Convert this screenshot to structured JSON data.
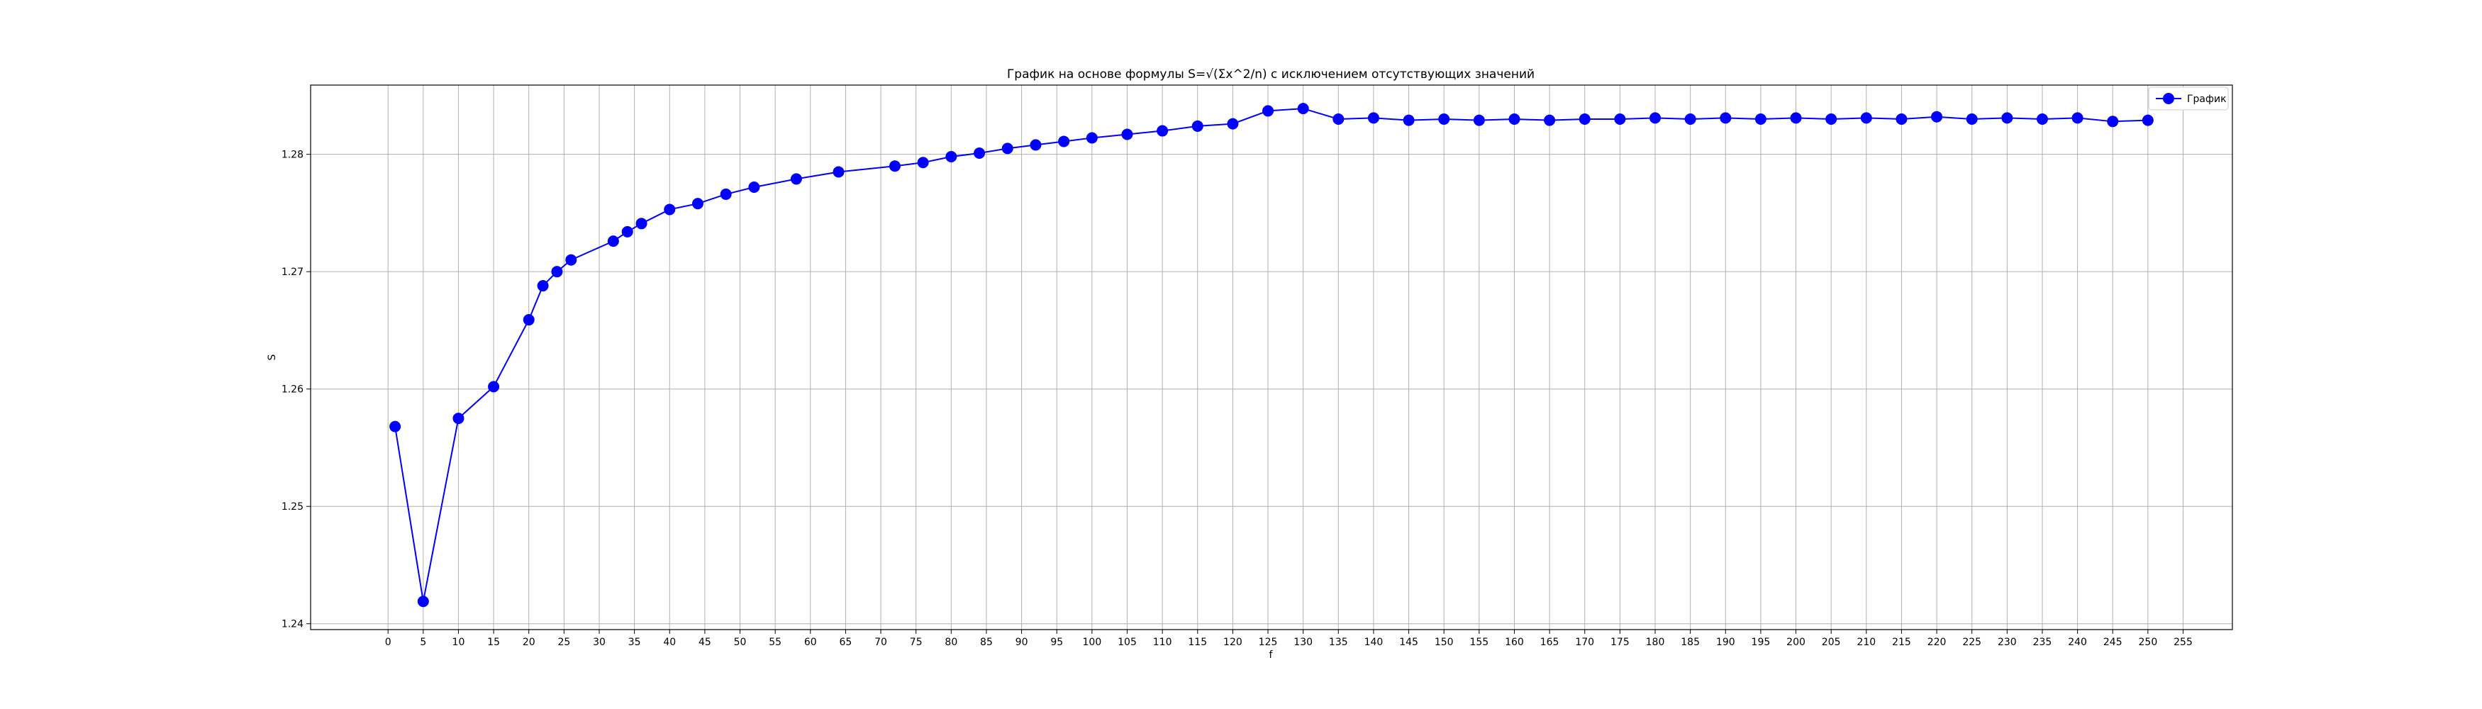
{
  "chart_data": {
    "type": "line",
    "title": "График на основе формулы S=√(Σx^2/n) с исключением отсутствующих значений",
    "xlabel": "f",
    "ylabel": "S",
    "xlim": [
      -11,
      262
    ],
    "ylim": [
      1.2395,
      1.2859
    ],
    "x_ticks": [
      0,
      5,
      10,
      15,
      20,
      25,
      30,
      35,
      40,
      45,
      50,
      55,
      60,
      65,
      70,
      75,
      80,
      85,
      90,
      95,
      100,
      105,
      110,
      115,
      120,
      125,
      130,
      135,
      140,
      145,
      150,
      155,
      160,
      165,
      170,
      175,
      180,
      185,
      190,
      195,
      200,
      205,
      210,
      215,
      220,
      225,
      230,
      235,
      240,
      245,
      250,
      255
    ],
    "y_ticks": [
      1.24,
      1.25,
      1.26,
      1.27,
      1.28
    ],
    "y_tick_labels": [
      "1.24",
      "1.25",
      "1.26",
      "1.27",
      "1.28"
    ],
    "grid": true,
    "legend_position": "top-right",
    "colors": {
      "series": "#0000ff",
      "grid": "#b0b0b0",
      "axes": "#000000"
    },
    "series": [
      {
        "name": "График",
        "marker": "circle",
        "x": [
          1,
          5,
          10,
          15,
          20,
          22,
          24,
          26,
          32,
          34,
          36,
          40,
          44,
          48,
          52,
          58,
          64,
          72,
          76,
          80,
          84,
          88,
          92,
          96,
          100,
          105,
          110,
          115,
          120,
          125,
          130,
          135,
          140,
          145,
          150,
          155,
          160,
          165,
          170,
          175,
          180,
          185,
          190,
          195,
          200,
          205,
          210,
          215,
          220,
          225,
          230,
          235,
          240,
          245,
          250
        ],
        "y": [
          1.2568,
          1.2419,
          1.2575,
          1.2602,
          1.2659,
          1.2688,
          1.27,
          1.271,
          1.2726,
          1.2734,
          1.2741,
          1.2753,
          1.2758,
          1.2766,
          1.2772,
          1.2779,
          1.2785,
          1.279,
          1.2793,
          1.2798,
          1.2801,
          1.2805,
          1.2808,
          1.2811,
          1.2814,
          1.2817,
          1.282,
          1.2824,
          1.2826,
          1.2837,
          1.2839,
          1.283,
          1.2831,
          1.2829,
          1.283,
          1.2829,
          1.283,
          1.2829,
          1.283,
          1.283,
          1.2831,
          1.283,
          1.2831,
          1.283,
          1.2831,
          1.283,
          1.2831,
          1.283,
          1.2832,
          1.283,
          1.2831,
          1.283,
          1.2831,
          1.2828,
          1.2829
        ]
      }
    ]
  }
}
